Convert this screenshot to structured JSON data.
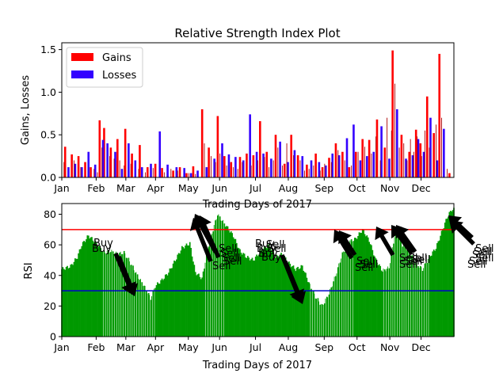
{
  "chart_data": [
    {
      "type": "bar",
      "title": "Relative Strength Index Plot",
      "xlabel": "Trading Days of 2017",
      "ylabel": "Gains, Losses",
      "xticks": [
        "Jan",
        "Feb",
        "Mar",
        "Apr",
        "May",
        "Jun",
        "Jul",
        "Aug",
        "Sep",
        "Oct",
        "Nov",
        "Dec"
      ],
      "yticks": [
        "0.0",
        "0.5",
        "1.0",
        "1.5"
      ],
      "ylim": [
        0,
        1.58
      ],
      "legend": "top-left",
      "series": [
        {
          "name": "Gains",
          "color": "#ff0000",
          "points": [
            [
              3,
              0.36
            ],
            [
              9,
              0.27
            ],
            [
              15,
              0.25
            ],
            [
              21,
              0.18
            ],
            [
              26,
              0.12
            ],
            [
              34,
              0.67
            ],
            [
              38,
              0.58
            ],
            [
              44,
              0.35
            ],
            [
              50,
              0.45
            ],
            [
              57,
              0.57
            ],
            [
              63,
              0.28
            ],
            [
              70,
              0.38
            ],
            [
              77,
              0.12
            ],
            [
              84,
              0.16
            ],
            [
              90,
              0.11
            ],
            [
              100,
              0.08
            ],
            [
              106,
              0.12
            ],
            [
              112,
              0.05
            ],
            [
              118,
              0.13
            ],
            [
              126,
              0.8
            ],
            [
              132,
              0.35
            ],
            [
              140,
              0.72
            ],
            [
              146,
              0.25
            ],
            [
              152,
              0.18
            ],
            [
              160,
              0.24
            ],
            [
              166,
              0.28
            ],
            [
              172,
              0.26
            ],
            [
              178,
              0.66
            ],
            [
              184,
              0.3
            ],
            [
              192,
              0.5
            ],
            [
              200,
              0.16
            ],
            [
              206,
              0.5
            ],
            [
              212,
              0.26
            ],
            [
              220,
              0.15
            ],
            [
              228,
              0.28
            ],
            [
              234,
              0.12
            ],
            [
              240,
              0.23
            ],
            [
              246,
              0.4
            ],
            [
              252,
              0.3
            ],
            [
              258,
              0.12
            ],
            [
              264,
              0.3
            ],
            [
              270,
              0.45
            ],
            [
              276,
              0.44
            ],
            [
              283,
              0.68
            ],
            [
              290,
              0.35
            ],
            [
              297,
              1.49
            ],
            [
              305,
              0.5
            ],
            [
              312,
              0.3
            ],
            [
              318,
              0.56
            ],
            [
              322,
              0.4
            ],
            [
              328,
              0.95
            ],
            [
              334,
              0.52
            ],
            [
              339,
              1.45
            ],
            [
              348,
              0.05
            ]
          ]
        },
        {
          "name": "Losses",
          "color": "#3300ff",
          "points": [
            [
              6,
              0.12
            ],
            [
              12,
              0.16
            ],
            [
              18,
              0.12
            ],
            [
              24,
              0.3
            ],
            [
              30,
              0.15
            ],
            [
              37,
              0.44
            ],
            [
              41,
              0.4
            ],
            [
              48,
              0.3
            ],
            [
              54,
              0.1
            ],
            [
              60,
              0.4
            ],
            [
              66,
              0.2
            ],
            [
              72,
              0.12
            ],
            [
              80,
              0.16
            ],
            [
              88,
              0.54
            ],
            [
              95,
              0.15
            ],
            [
              103,
              0.12
            ],
            [
              110,
              0.11
            ],
            [
              116,
              0.05
            ],
            [
              122,
              0.08
            ],
            [
              130,
              0.12
            ],
            [
              137,
              0.22
            ],
            [
              144,
              0.4
            ],
            [
              150,
              0.27
            ],
            [
              156,
              0.24
            ],
            [
              163,
              0.2
            ],
            [
              169,
              0.74
            ],
            [
              175,
              0.3
            ],
            [
              181,
              0.28
            ],
            [
              188,
              0.22
            ],
            [
              196,
              0.42
            ],
            [
              203,
              0.18
            ],
            [
              209,
              0.32
            ],
            [
              216,
              0.25
            ],
            [
              224,
              0.2
            ],
            [
              231,
              0.18
            ],
            [
              237,
              0.14
            ],
            [
              243,
              0.28
            ],
            [
              249,
              0.26
            ],
            [
              256,
              0.46
            ],
            [
              262,
              0.62
            ],
            [
              268,
              0.2
            ],
            [
              274,
              0.25
            ],
            [
              280,
              0.3
            ],
            [
              287,
              0.6
            ],
            [
              294,
              0.22
            ],
            [
              301,
              0.8
            ],
            [
              309,
              0.22
            ],
            [
              315,
              0.26
            ],
            [
              320,
              0.45
            ],
            [
              325,
              0.3
            ],
            [
              331,
              0.7
            ],
            [
              337,
              0.2
            ],
            [
              343,
              0.57
            ]
          ]
        },
        {
          "name": "",
          "color": "#aa0000",
          "points": [
            [
              2,
              0.18
            ],
            [
              11,
              0.2
            ],
            [
              17,
              0.12
            ],
            [
              29,
              0.1
            ],
            [
              32,
              0.06
            ],
            [
              36,
              0.35
            ],
            [
              43,
              0.25
            ],
            [
              47,
              0.22
            ],
            [
              52,
              0.2
            ],
            [
              56,
              0.14
            ],
            [
              62,
              0.16
            ],
            [
              69,
              0.1
            ],
            [
              75,
              0.06
            ],
            [
              82,
              0.11
            ],
            [
              92,
              0.06
            ],
            [
              98,
              0.1
            ],
            [
              104,
              0.08
            ],
            [
              114,
              0.05
            ],
            [
              120,
              0.04
            ],
            [
              128,
              0.4
            ],
            [
              134,
              0.25
            ],
            [
              138,
              0.18
            ],
            [
              142,
              0.28
            ],
            [
              148,
              0.14
            ],
            [
              154,
              0.12
            ],
            [
              158,
              0.1
            ],
            [
              162,
              0.18
            ],
            [
              170,
              0.14
            ],
            [
              176,
              0.2
            ],
            [
              182,
              0.24
            ],
            [
              186,
              0.12
            ],
            [
              190,
              0.2
            ],
            [
              194,
              0.35
            ],
            [
              198,
              0.14
            ],
            [
              202,
              0.4
            ],
            [
              208,
              0.26
            ],
            [
              214,
              0.2
            ],
            [
              218,
              0.08
            ],
            [
              222,
              0.1
            ],
            [
              226,
              0.14
            ],
            [
              232,
              0.08
            ],
            [
              236,
              0.16
            ],
            [
              242,
              0.18
            ],
            [
              248,
              0.32
            ],
            [
              254,
              0.2
            ],
            [
              260,
              0.14
            ],
            [
              266,
              0.3
            ],
            [
              272,
              0.36
            ],
            [
              278,
              0.28
            ],
            [
              282,
              0.48
            ],
            [
              286,
              0.2
            ],
            [
              292,
              0.7
            ],
            [
              296,
              0.55
            ],
            [
              299,
              1.1
            ],
            [
              303,
              0.35
            ],
            [
              307,
              0.4
            ],
            [
              310,
              0.2
            ],
            [
              313,
              0.45
            ],
            [
              316,
              0.3
            ],
            [
              319,
              0.48
            ],
            [
              323,
              0.25
            ],
            [
              326,
              0.55
            ],
            [
              330,
              0.35
            ],
            [
              336,
              0.62
            ],
            [
              341,
              0.7
            ],
            [
              346,
              0.1
            ]
          ]
        }
      ]
    },
    {
      "type": "bar",
      "xlabel": "Trading Days of 2017",
      "ylabel": "RSI",
      "xticks": [
        "Jan",
        "Feb",
        "Mar",
        "Apr",
        "May",
        "Jun",
        "Jul",
        "Aug",
        "Sep",
        "Oct",
        "Nov",
        "Dec"
      ],
      "yticks": [
        "0",
        "20",
        "40",
        "60",
        "80"
      ],
      "ylim": [
        0,
        87
      ],
      "bar_color": "#009900",
      "overbought": 70,
      "oversold": 30,
      "overbought_color": "#ff0000",
      "oversold_color": "#0000cc",
      "rsi_profile": [
        [
          0,
          44
        ],
        [
          8,
          46
        ],
        [
          14,
          52
        ],
        [
          18,
          60
        ],
        [
          24,
          66
        ],
        [
          30,
          62
        ],
        [
          38,
          55
        ],
        [
          44,
          56
        ],
        [
          50,
          54
        ],
        [
          56,
          55
        ],
        [
          62,
          48
        ],
        [
          68,
          40
        ],
        [
          75,
          32
        ],
        [
          80,
          25
        ],
        [
          84,
          33
        ],
        [
          90,
          37
        ],
        [
          96,
          42
        ],
        [
          102,
          50
        ],
        [
          108,
          58
        ],
        [
          115,
          61
        ],
        [
          120,
          42
        ],
        [
          126,
          38
        ],
        [
          132,
          60
        ],
        [
          140,
          80
        ],
        [
          148,
          72
        ],
        [
          154,
          66
        ],
        [
          160,
          56
        ],
        [
          166,
          52
        ],
        [
          172,
          50
        ],
        [
          180,
          57
        ],
        [
          186,
          60
        ],
        [
          192,
          52
        ],
        [
          198,
          54
        ],
        [
          204,
          48
        ],
        [
          210,
          44
        ],
        [
          216,
          46
        ],
        [
          222,
          35
        ],
        [
          228,
          26
        ],
        [
          234,
          20
        ],
        [
          240,
          28
        ],
        [
          246,
          40
        ],
        [
          252,
          54
        ],
        [
          258,
          62
        ],
        [
          264,
          64
        ],
        [
          270,
          70
        ],
        [
          276,
          63
        ],
        [
          282,
          50
        ],
        [
          288,
          43
        ],
        [
          294,
          45
        ],
        [
          300,
          70
        ],
        [
          306,
          60
        ],
        [
          312,
          56
        ],
        [
          318,
          48
        ],
        [
          324,
          44
        ],
        [
          330,
          52
        ],
        [
          336,
          58
        ],
        [
          342,
          70
        ],
        [
          346,
          78
        ],
        [
          350,
          83
        ]
      ]
    }
  ],
  "annotations": {
    "buy": [
      "Buy",
      "Buy",
      "Buy",
      "Buy",
      "Buy",
      "Buy"
    ],
    "sell": [
      "Sell",
      "Sell",
      "Sell",
      "Sell",
      "Sell",
      "Sell",
      "Sell",
      "Sell",
      "Sell",
      "Sell",
      "Sell",
      "Sell",
      "Sell",
      "Sell",
      "Sell",
      "Sell",
      "Sell",
      "Sell",
      "Sell",
      "Sell",
      "Sell"
    ],
    "arrow_color": "#000000"
  }
}
